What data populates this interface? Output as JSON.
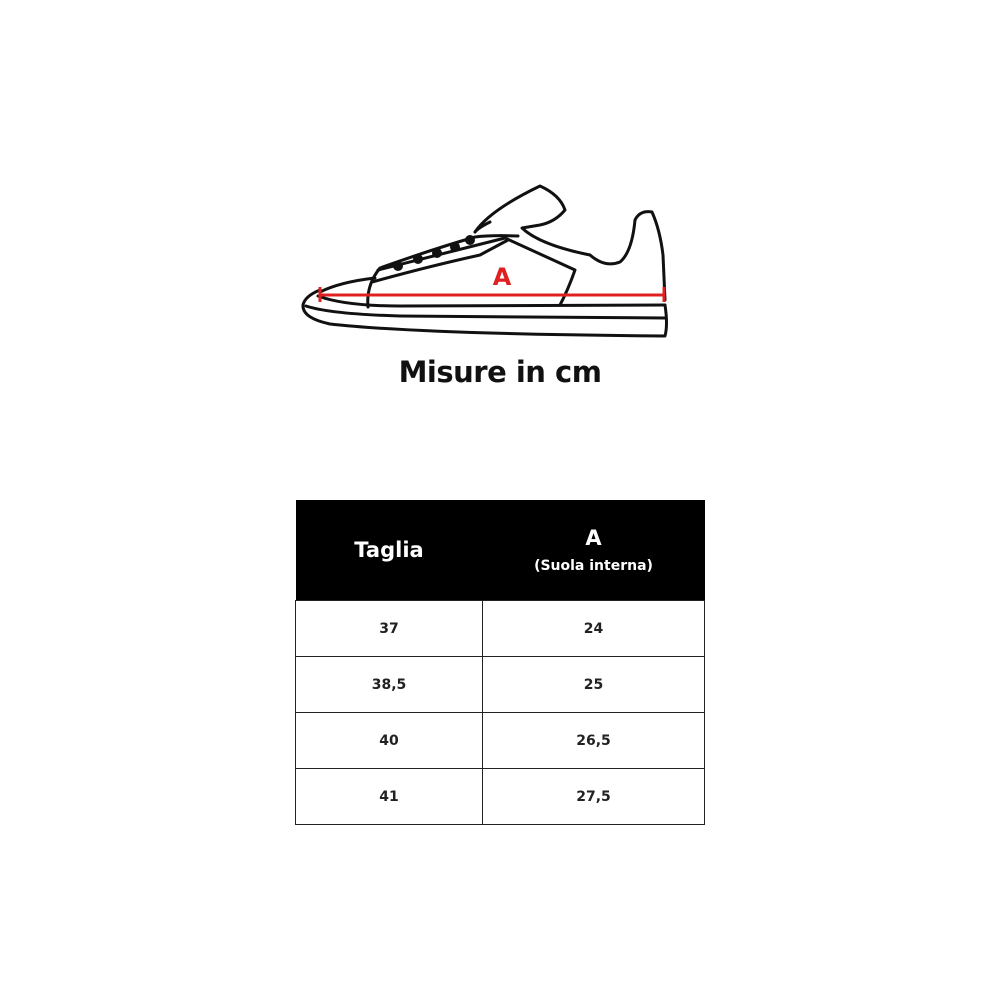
{
  "illustration": {
    "label": "A",
    "measure_color": "#e02020"
  },
  "title": "Misure in cm",
  "table": {
    "headers": {
      "size": "Taglia",
      "a_title": "A",
      "a_subtitle": "(Suola interna)"
    },
    "rows": [
      {
        "size": "37",
        "a": "24"
      },
      {
        "size": "38,5",
        "a": "25"
      },
      {
        "size": "40",
        "a": "26,5"
      },
      {
        "size": "41",
        "a": "27,5"
      }
    ]
  }
}
